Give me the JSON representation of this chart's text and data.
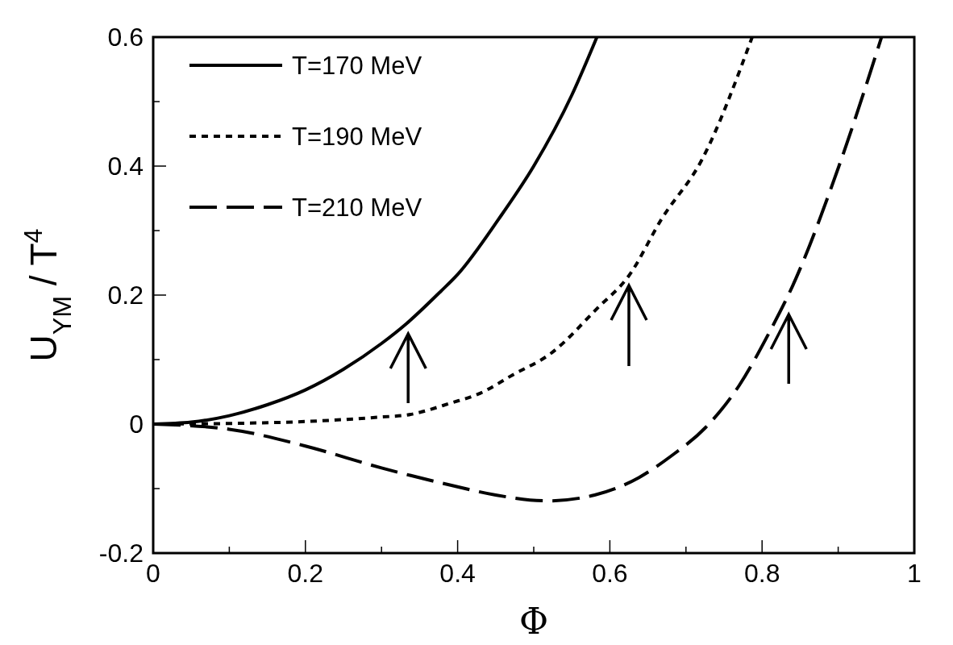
{
  "chart_data": {
    "type": "line",
    "xlabel": "Φ",
    "ylabel": "U$_{YM}$ / T$^{4}$",
    "xlim": [
      0,
      1
    ],
    "ylim": [
      -0.2,
      0.6
    ],
    "xticks": [
      0,
      {
        "value": 0.1,
        "label": null
      },
      0.2,
      {
        "value": 0.3,
        "label": null
      },
      0.4,
      {
        "value": 0.5,
        "label": null
      },
      0.6,
      {
        "value": 0.7,
        "label": null
      },
      0.8,
      {
        "value": 0.9,
        "label": null
      },
      1
    ],
    "yticks": [
      -0.2,
      {
        "value": -0.1,
        "label": null
      },
      0,
      {
        "value": 0.1,
        "label": null
      },
      0.2,
      {
        "value": 0.3,
        "label": null
      },
      0.4,
      {
        "value": 0.5,
        "label": null
      },
      0.6
    ],
    "legend": "top left",
    "grid": false,
    "series": [
      {
        "name": "T=170 MeV",
        "color": "#000000",
        "line_style": "solid",
        "x": [
          0,
          0.05,
          0.1,
          0.15,
          0.2,
          0.25,
          0.3,
          0.333,
          0.378,
          0.4,
          0.454,
          0.5,
          0.55,
          0.583
        ],
        "values": [
          0,
          0.003,
          0.013,
          0.03,
          0.053,
          0.085,
          0.125,
          0.156,
          0.206,
          0.232,
          0.318,
          0.4,
          0.51,
          0.6
        ]
      },
      {
        "name": "T=190 MeV",
        "color": "#000000",
        "line_style": "dotted",
        "x": [
          0,
          0.1,
          0.2,
          0.25,
          0.3,
          0.333,
          0.392,
          0.43,
          0.472,
          0.523,
          0.583,
          0.625,
          0.668,
          0.721,
          0.787
        ],
        "values": [
          0,
          0.001,
          0.004,
          0.007,
          0.011,
          0.014,
          0.033,
          0.048,
          0.076,
          0.11,
          0.179,
          0.23,
          0.318,
          0.41,
          0.6
        ]
      },
      {
        "name": "T=210 MeV",
        "color": "#000000",
        "line_style": "dashed",
        "x": [
          0,
          0.1,
          0.2,
          0.3,
          0.392,
          0.45,
          0.519,
          0.58,
          0.638,
          0.68,
          0.726,
          0.77,
          0.809,
          0.84,
          0.901,
          0.957
        ],
        "values": [
          0,
          -0.008,
          -0.034,
          -0.068,
          -0.095,
          -0.11,
          -0.119,
          -0.11,
          -0.083,
          -0.05,
          -0.005,
          0.06,
          0.141,
          0.214,
          0.4,
          0.6
        ]
      }
    ]
  }
}
